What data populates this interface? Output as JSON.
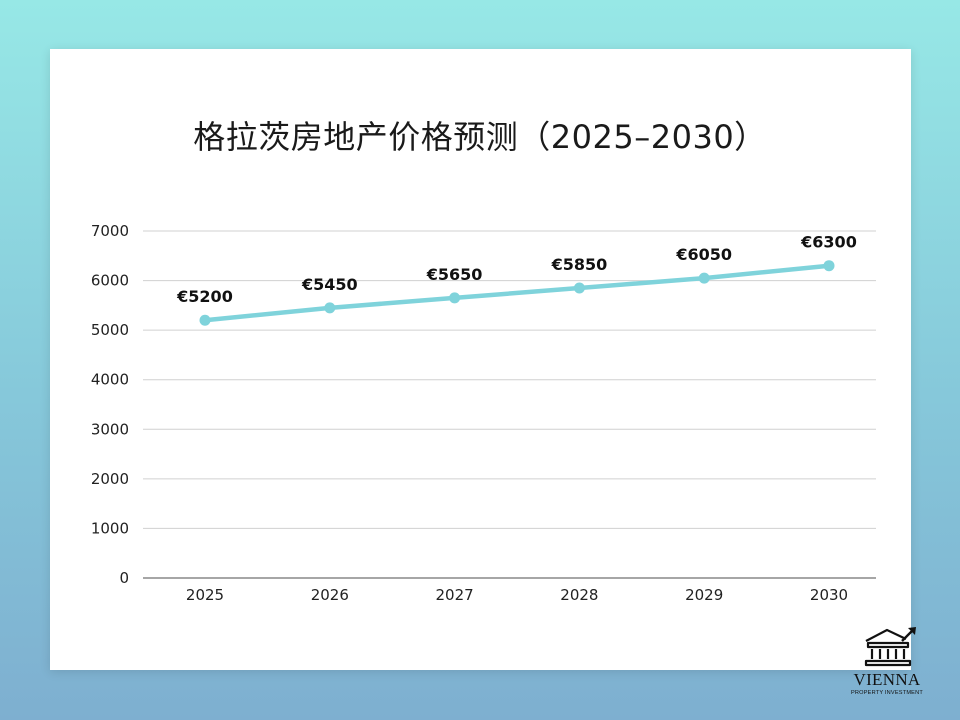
{
  "colors": {
    "line": "#7fd3db",
    "grid": "#d0d0d0",
    "axis": "#888888",
    "text": "#222222"
  },
  "chart_data": {
    "type": "line",
    "title": "格拉茨房地产价格预测（2025–2030）",
    "xlabel": "",
    "ylabel": "",
    "categories": [
      "2025",
      "2026",
      "2027",
      "2028",
      "2029",
      "2030"
    ],
    "series": [
      {
        "values": [
          5200,
          5450,
          5650,
          5850,
          6050,
          6300
        ],
        "data_labels": [
          "€5200",
          "€5450",
          "€5650",
          "€5850",
          "€6050",
          "€6300"
        ]
      }
    ],
    "ylim": [
      0,
      7000
    ],
    "yticks": [
      0,
      1000,
      2000,
      3000,
      4000,
      5000,
      6000,
      7000
    ],
    "grid": true,
    "legend": false
  },
  "logo": {
    "icon": "bank-building-icon",
    "name": "VIENNA",
    "subtitle": "PROPERTY INVESTMENT"
  }
}
